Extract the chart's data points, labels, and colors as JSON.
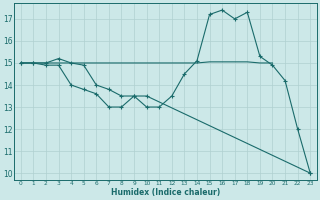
{
  "xlabel": "Humidex (Indice chaleur)",
  "bg_color": "#cce8e8",
  "line_color": "#1a6b6b",
  "grid_color": "#b0d0d0",
  "line1_x": [
    0,
    1,
    2,
    3,
    4,
    5,
    6,
    7,
    8,
    9,
    10,
    11,
    12,
    13,
    14,
    15,
    16,
    17,
    18,
    19,
    20,
    21,
    22,
    23
  ],
  "line1_y": [
    15,
    15,
    15,
    15.2,
    15,
    14.9,
    14,
    13.8,
    13.5,
    13.5,
    13,
    13,
    13.5,
    14.5,
    15.1,
    17.2,
    17.4,
    17,
    17.3,
    15.3,
    14.9,
    14.2,
    12,
    10
  ],
  "line2_x": [
    0,
    1,
    2,
    3,
    4,
    5,
    6,
    7,
    8,
    9,
    10,
    11,
    12,
    13,
    14,
    15,
    16,
    17,
    18,
    19,
    20
  ],
  "line2_y": [
    15,
    15,
    15,
    15,
    15,
    15,
    15,
    15,
    15,
    15,
    15,
    15,
    15,
    15,
    15,
    15.05,
    15.05,
    15.05,
    15.05,
    15,
    15
  ],
  "line3_x": [
    0,
    1,
    2,
    3,
    4,
    5,
    6,
    7,
    8,
    9,
    10,
    23
  ],
  "line3_y": [
    15,
    15,
    14.9,
    14.9,
    14.0,
    13.8,
    13.6,
    13.0,
    13.0,
    13.5,
    13.5,
    10
  ],
  "xlim": [
    -0.5,
    23.5
  ],
  "ylim": [
    9.7,
    17.7
  ],
  "yticks": [
    10,
    11,
    12,
    13,
    14,
    15,
    16,
    17
  ],
  "xticks": [
    0,
    1,
    2,
    3,
    4,
    5,
    6,
    7,
    8,
    9,
    10,
    11,
    12,
    13,
    14,
    15,
    16,
    17,
    18,
    19,
    20,
    21,
    22,
    23
  ]
}
